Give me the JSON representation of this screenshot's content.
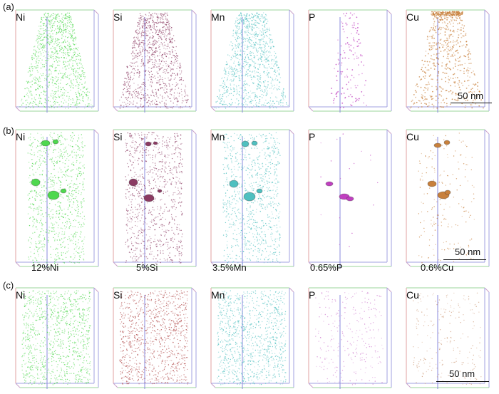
{
  "rows": [
    {
      "label": "(a)",
      "panels": [
        {
          "element": "Ni",
          "color": "#4fd84f"
        },
        {
          "element": "Si",
          "color": "#8b3a62"
        },
        {
          "element": "Mn",
          "color": "#4fc0c0"
        },
        {
          "element": "P",
          "color": "#c040c0"
        },
        {
          "element": "Cu",
          "color": "#c8803c"
        }
      ],
      "scale_bar": "50 nm"
    },
    {
      "label": "(b)",
      "panels": [
        {
          "element": "Ni",
          "color": "#4fd84f",
          "threshold": "12%Ni"
        },
        {
          "element": "Si",
          "color": "#8b3a62",
          "threshold": "5%Si"
        },
        {
          "element": "Mn",
          "color": "#4fc0c0",
          "threshold": "3.5%Mn"
        },
        {
          "element": "P",
          "color": "#c040c0",
          "threshold": "0.65%P"
        },
        {
          "element": "Cu",
          "color": "#c8803c",
          "threshold": "0.6%Cu"
        }
      ],
      "scale_bar": "50 nm"
    },
    {
      "label": "(c)",
      "panels": [
        {
          "element": "Ni",
          "color": "#4fd84f"
        },
        {
          "element": "Si",
          "color": "#b04848"
        },
        {
          "element": "Mn",
          "color": "#4fc0c0"
        },
        {
          "element": "P",
          "color": "#d080d0"
        },
        {
          "element": "Cu",
          "color": "#d0a080"
        }
      ],
      "scale_bar": "50 nm"
    }
  ]
}
